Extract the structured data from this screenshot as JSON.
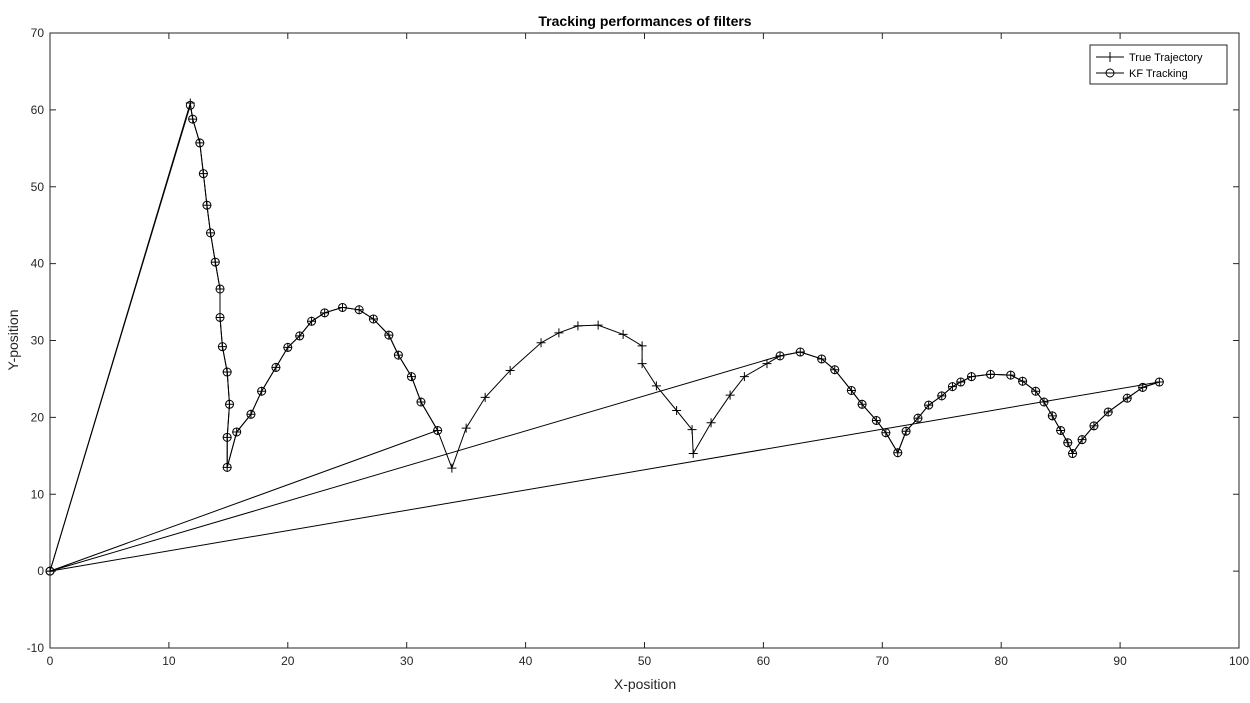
{
  "chart_data": {
    "type": "line",
    "title": "Tracking performances of filters",
    "xlabel": "X-position",
    "ylabel": "Y-position",
    "xlim": [
      0,
      100
    ],
    "ylim": [
      -10,
      70
    ],
    "xticks": [
      "0",
      "10",
      "20",
      "30",
      "40",
      "50",
      "60",
      "70",
      "80",
      "90",
      "100"
    ],
    "yticks": [
      "-10",
      "0",
      "10",
      "20",
      "30",
      "40",
      "50",
      "60",
      "70"
    ],
    "grid": false,
    "legend_position": "top-right",
    "series": [
      {
        "name": "True Trajectory",
        "marker": "plus",
        "color": "#000000",
        "x": [
          0,
          11.8,
          12.0,
          12.6,
          12.9,
          13.2,
          13.5,
          13.9,
          14.3,
          14.3,
          14.5,
          14.9,
          15.1,
          14.9,
          14.9,
          15.7,
          16.9,
          17.8,
          19.0,
          20.0,
          21.0,
          22.0,
          23.1,
          24.6,
          26.0,
          27.2,
          28.5,
          29.3,
          30.4,
          31.2,
          32.6,
          33.8,
          35.0,
          36.6,
          38.7,
          41.3,
          42.8,
          44.4,
          46.1,
          48.2,
          49.8,
          49.8,
          51.0,
          52.7,
          54.0,
          54.1,
          55.6,
          57.2,
          58.4,
          60.3,
          61.4,
          63.1,
          64.9,
          66.0,
          67.4,
          68.3,
          69.5,
          70.3,
          71.3,
          72.0,
          73.0,
          73.9,
          75.0,
          75.9,
          76.6,
          77.5,
          79.1,
          80.8,
          81.8,
          82.9,
          83.6,
          84.3,
          85.0,
          85.6,
          86.0,
          86.8,
          87.8,
          89.0,
          90.6,
          91.9,
          93.3,
          0
        ],
        "y": [
          0,
          60.9,
          58.8,
          55.7,
          51.7,
          47.6,
          44.0,
          40.2,
          36.7,
          33.0,
          29.2,
          25.9,
          21.7,
          17.4,
          13.5,
          18.1,
          20.4,
          23.4,
          26.5,
          29.1,
          30.6,
          32.5,
          33.6,
          34.3,
          34.0,
          32.8,
          30.7,
          28.1,
          25.3,
          22.0,
          18.3,
          13.4,
          18.6,
          22.6,
          26.1,
          29.7,
          31.0,
          31.9,
          32.0,
          30.8,
          29.3,
          27.0,
          24.1,
          20.9,
          18.4,
          15.3,
          19.3,
          22.9,
          25.3,
          27.0,
          28.0,
          28.5,
          27.6,
          26.2,
          23.5,
          21.7,
          19.6,
          18.0,
          15.4,
          18.2,
          19.9,
          21.6,
          22.8,
          24.0,
          24.6,
          25.3,
          25.6,
          25.5,
          24.7,
          23.4,
          22.0,
          20.2,
          18.3,
          16.7,
          15.3,
          17.1,
          18.9,
          20.7,
          22.5,
          23.9,
          24.6,
          0
        ]
      },
      {
        "name": "KF Tracking",
        "marker": "circle",
        "color": "#000000",
        "x": [
          0,
          11.8,
          12.0,
          12.6,
          12.9,
          13.2,
          13.5,
          13.9,
          14.3,
          14.3,
          14.5,
          14.9,
          15.1,
          14.9,
          14.9,
          15.7,
          16.9,
          17.8,
          19.0,
          20.0,
          21.0,
          22.0,
          23.1,
          24.6,
          26.0,
          27.2,
          28.5,
          29.3,
          30.4,
          31.2,
          32.6,
          0,
          61.4,
          63.1,
          64.9,
          66.0,
          67.4,
          68.3,
          69.5,
          70.3,
          71.3,
          72.0,
          73.0,
          73.9,
          75.0,
          75.9,
          76.6,
          77.5,
          79.1,
          80.8,
          81.8,
          82.9,
          83.6,
          84.3,
          85.0,
          85.6,
          86.0,
          86.8,
          87.8,
          89.0,
          90.6,
          91.9,
          93.3
        ],
        "y": [
          0,
          60.6,
          58.8,
          55.7,
          51.7,
          47.6,
          44.0,
          40.2,
          36.7,
          33.0,
          29.2,
          25.9,
          21.7,
          17.4,
          13.5,
          18.1,
          20.4,
          23.4,
          26.5,
          29.1,
          30.6,
          32.5,
          33.6,
          34.3,
          34.0,
          32.8,
          30.7,
          28.1,
          25.3,
          22.0,
          18.3,
          0,
          28.0,
          28.5,
          27.6,
          26.2,
          23.5,
          21.7,
          19.6,
          18.0,
          15.4,
          18.2,
          19.9,
          21.6,
          22.8,
          24.0,
          24.6,
          25.3,
          25.6,
          25.5,
          24.7,
          23.4,
          22.0,
          20.2,
          18.3,
          16.7,
          15.3,
          17.1,
          18.9,
          20.7,
          22.5,
          23.9,
          24.6
        ]
      }
    ]
  }
}
